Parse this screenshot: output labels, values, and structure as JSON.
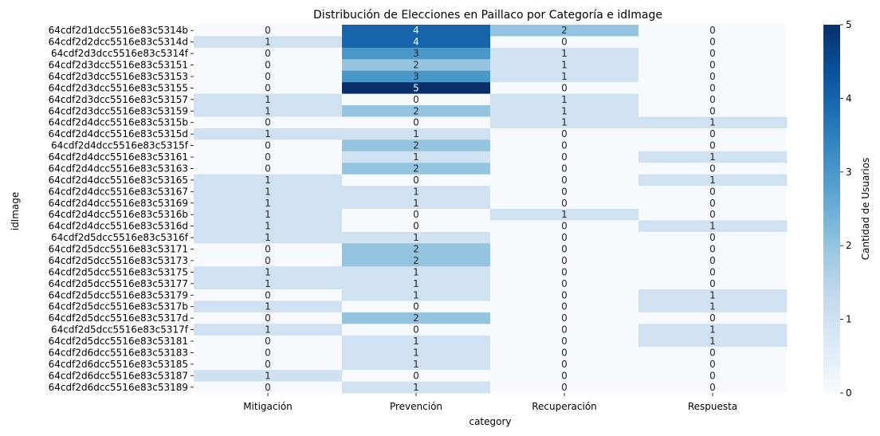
{
  "chart_data": {
    "type": "heatmap",
    "title": "Distribución de Elecciones en Paillaco por Categoría e idImage",
    "xlabel": "category",
    "ylabel": "idImage",
    "colorbar_label": "Cantidad de Usuarios",
    "colormap": "Blues",
    "vmin": 0,
    "vmax": 5,
    "colorbar_ticks": [
      0,
      1,
      2,
      3,
      4,
      5
    ],
    "columns": [
      "Mitigación",
      "Prevención",
      "Recuperación",
      "Respuesta"
    ],
    "rows": [
      "64cdf2d1dcc5516e83c5314b",
      "64cdf2d2dcc5516e83c5314d",
      "64cdf2d3dcc5516e83c5314f",
      "64cdf2d3dcc5516e83c53151",
      "64cdf2d3dcc5516e83c53153",
      "64cdf2d3dcc5516e83c53155",
      "64cdf2d3dcc5516e83c53157",
      "64cdf2d3dcc5516e83c53159",
      "64cdf2d4dcc5516e83c5315b",
      "64cdf2d4dcc5516e83c5315d",
      "64cdf2d4dcc5516e83c5315f",
      "64cdf2d4dcc5516e83c53161",
      "64cdf2d4dcc5516e83c53163",
      "64cdf2d4dcc5516e83c53165",
      "64cdf2d4dcc5516e83c53167",
      "64cdf2d4dcc5516e83c53169",
      "64cdf2d4dcc5516e83c5316b",
      "64cdf2d4dcc5516e83c5316d",
      "64cdf2d5dcc5516e83c5316f",
      "64cdf2d5dcc5516e83c53171",
      "64cdf2d5dcc5516e83c53173",
      "64cdf2d5dcc5516e83c53175",
      "64cdf2d5dcc5516e83c53177",
      "64cdf2d5dcc5516e83c53179",
      "64cdf2d5dcc5516e83c5317b",
      "64cdf2d5dcc5516e83c5317d",
      "64cdf2d5dcc5516e83c5317f",
      "64cdf2d5dcc5516e83c53181",
      "64cdf2d6dcc5516e83c53183",
      "64cdf2d6dcc5516e83c53185",
      "64cdf2d6dcc5516e83c53187",
      "64cdf2d6dcc5516e83c53189"
    ],
    "values": [
      [
        0,
        4,
        2,
        0
      ],
      [
        1,
        4,
        0,
        0
      ],
      [
        0,
        3,
        1,
        0
      ],
      [
        0,
        2,
        1,
        0
      ],
      [
        0,
        3,
        1,
        0
      ],
      [
        0,
        5,
        0,
        0
      ],
      [
        1,
        0,
        1,
        0
      ],
      [
        1,
        2,
        1,
        0
      ],
      [
        0,
        0,
        1,
        1
      ],
      [
        1,
        1,
        0,
        0
      ],
      [
        0,
        2,
        0,
        0
      ],
      [
        0,
        1,
        0,
        1
      ],
      [
        0,
        2,
        0,
        0
      ],
      [
        1,
        0,
        0,
        1
      ],
      [
        1,
        1,
        0,
        0
      ],
      [
        1,
        1,
        0,
        0
      ],
      [
        1,
        0,
        1,
        0
      ],
      [
        1,
        0,
        0,
        1
      ],
      [
        1,
        1,
        0,
        0
      ],
      [
        0,
        2,
        0,
        0
      ],
      [
        0,
        2,
        0,
        0
      ],
      [
        1,
        1,
        0,
        0
      ],
      [
        1,
        1,
        0,
        0
      ],
      [
        0,
        1,
        0,
        1
      ],
      [
        1,
        0,
        0,
        1
      ],
      [
        0,
        2,
        0,
        0
      ],
      [
        1,
        0,
        0,
        1
      ],
      [
        0,
        1,
        0,
        1
      ],
      [
        0,
        1,
        0,
        0
      ],
      [
        0,
        1,
        0,
        0
      ],
      [
        1,
        0,
        0,
        0
      ],
      [
        0,
        1,
        0,
        0
      ]
    ]
  }
}
